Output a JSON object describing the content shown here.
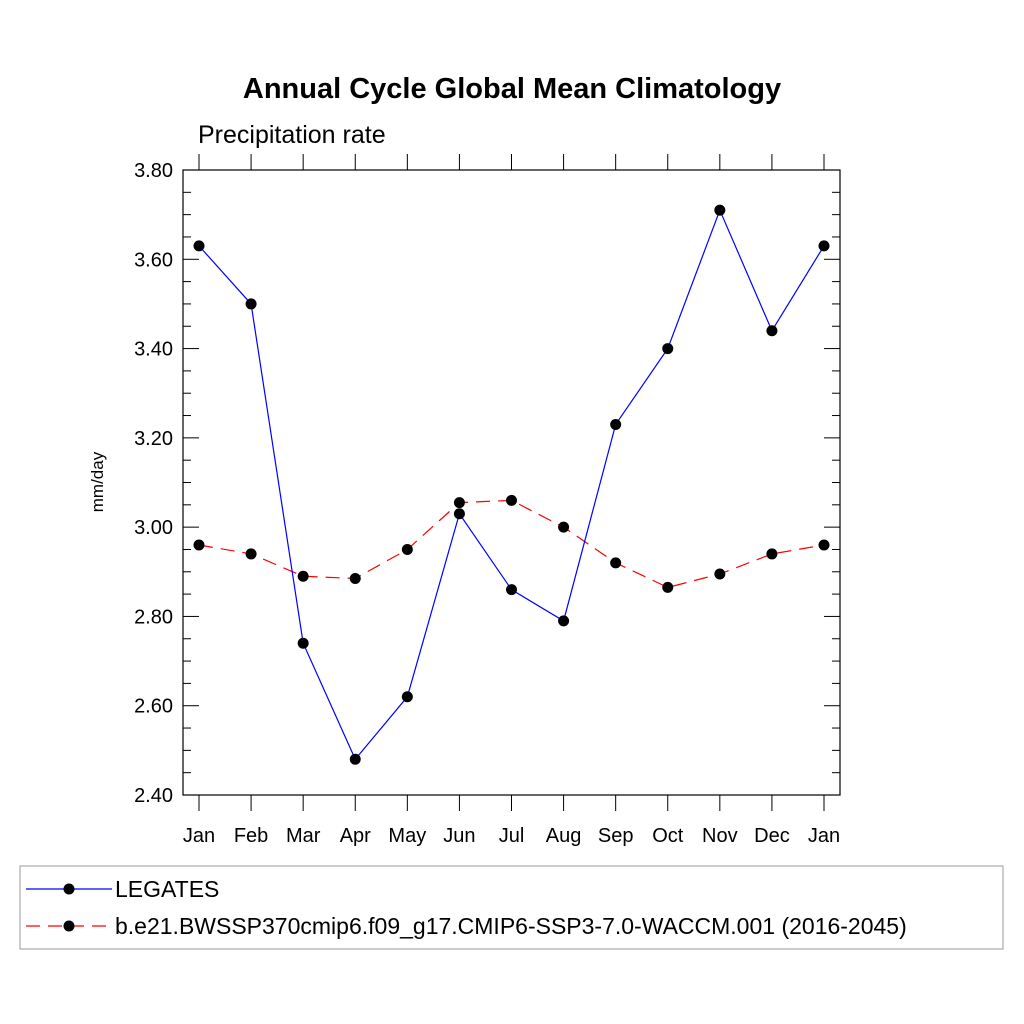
{
  "chart_data": {
    "type": "line",
    "title": "Annual Cycle Global Mean Climatology",
    "subtitle": "Precipitation rate",
    "ylabel": "mm/day",
    "xlabel": "",
    "categories": [
      "Jan",
      "Feb",
      "Mar",
      "Apr",
      "May",
      "Jun",
      "Jul",
      "Aug",
      "Sep",
      "Oct",
      "Nov",
      "Dec",
      "Jan"
    ],
    "ylim": [
      2.4,
      3.8
    ],
    "yticks": [
      "2.40",
      "2.60",
      "2.80",
      "3.00",
      "3.20",
      "3.40",
      "3.60",
      "3.80"
    ],
    "grid": false,
    "legend_position": "bottom",
    "series": [
      {
        "name": "LEGATES",
        "color": "#0000ff",
        "line_style": "solid",
        "marker": "filled-circle",
        "values": [
          3.63,
          3.5,
          2.74,
          2.48,
          2.62,
          3.03,
          2.86,
          2.79,
          3.23,
          3.4,
          3.71,
          3.44,
          3.63
        ]
      },
      {
        "name": "b.e21.BWSSP370cmip6.f09_g17.CMIP6-SSP3-7.0-WACCM.001 (2016-2045)",
        "color": "#ff0000",
        "line_style": "dashed",
        "marker": "filled-circle",
        "values": [
          2.96,
          2.94,
          2.89,
          2.885,
          2.95,
          3.055,
          3.06,
          3.0,
          2.92,
          2.865,
          2.895,
          2.94,
          2.96
        ]
      }
    ]
  }
}
